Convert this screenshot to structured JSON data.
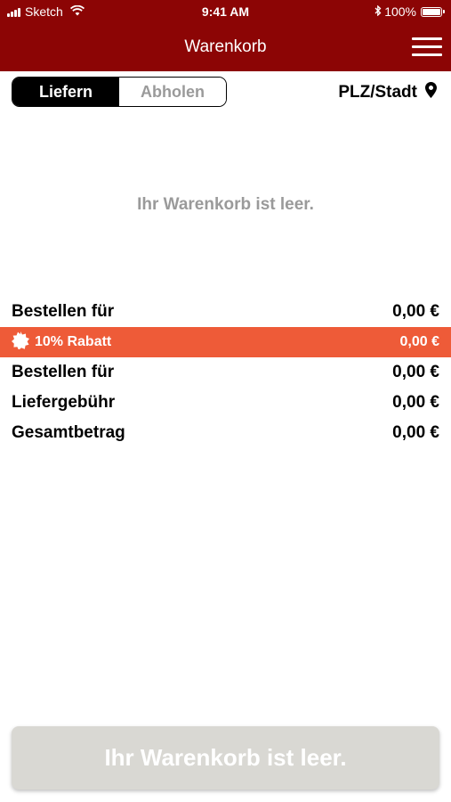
{
  "status_bar": {
    "carrier": "Sketch",
    "time": "9:41 AM",
    "battery": "100%"
  },
  "nav": {
    "title": "Warenkorb"
  },
  "delivery_toggle": {
    "options": [
      "Liefern",
      "Abholen"
    ],
    "selected": "Liefern"
  },
  "location": {
    "label": "PLZ/Stadt"
  },
  "cart": {
    "empty_message": "Ihr Warenkorb ist leer."
  },
  "summary": {
    "rows": [
      {
        "label": "Bestellen für",
        "value": "0,00 €"
      },
      {
        "label": "10% Rabatt",
        "value": "0,00 €"
      },
      {
        "label": "Bestellen für",
        "value": "0,00 €"
      },
      {
        "label": "Liefergebühr",
        "value": "0,00 €"
      },
      {
        "label": "Gesamtbetrag",
        "value": "0,00 €"
      }
    ]
  },
  "checkout": {
    "label": "Ihr Warenkorb ist leer."
  },
  "colors": {
    "brand": "#8c0505",
    "discount": "#ee5b38",
    "button_disabled": "#d9d8d3",
    "muted_text": "#9a9a9a"
  }
}
